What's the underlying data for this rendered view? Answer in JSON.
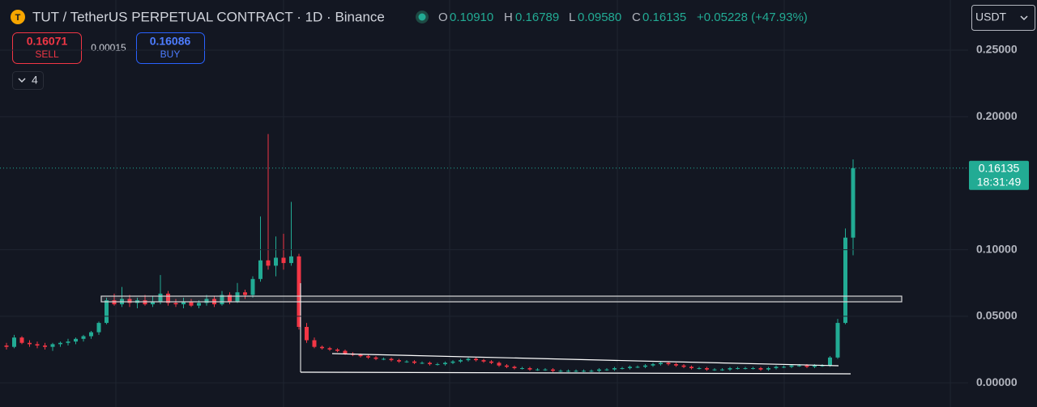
{
  "header": {
    "symbol": "TUT / TetherUS PERPETUAL CONTRACT · 1D · Binance",
    "open": {
      "label": "O",
      "value": "0.10910"
    },
    "high": {
      "label": "H",
      "value": "0.16789"
    },
    "low": {
      "label": "L",
      "value": "0.09580"
    },
    "close": {
      "label": "C",
      "value": "0.16135"
    },
    "change": "+0.05228 (+47.93%)"
  },
  "trade": {
    "sell_price": "0.16071",
    "sell_label": "SELL",
    "spread": "0.00015",
    "buy_price": "0.16086",
    "buy_label": "BUY"
  },
  "indicators_toggle": "4",
  "currency": "USDT",
  "chart_data": {
    "type": "candlestick",
    "up_color": "#22ab94",
    "down_color": "#f23645",
    "grid": true,
    "ylim": [
      -0.0182,
      0.2877
    ],
    "yticks": [
      {
        "value": 0.25,
        "label": "0.25000"
      },
      {
        "value": 0.2,
        "label": "0.20000"
      },
      {
        "value": 0.1,
        "label": "0.10000"
      },
      {
        "value": 0.05,
        "label": "0.05000"
      },
      {
        "value": 0,
        "label": "0.00000"
      }
    ],
    "last_price": {
      "value": 0.16135,
      "label": "0.16135"
    },
    "countdown": "18:31:49",
    "candles": [
      [
        0.028,
        0.03,
        0.025,
        0.027
      ],
      [
        0.027,
        0.036,
        0.026,
        0.034
      ],
      [
        0.034,
        0.035,
        0.029,
        0.03
      ],
      [
        0.03,
        0.032,
        0.027,
        0.029
      ],
      [
        0.029,
        0.031,
        0.026,
        0.028
      ],
      [
        0.028,
        0.03,
        0.025,
        0.027
      ],
      [
        0.027,
        0.03,
        0.024,
        0.029
      ],
      [
        0.029,
        0.031,
        0.027,
        0.03
      ],
      [
        0.03,
        0.033,
        0.028,
        0.031
      ],
      [
        0.031,
        0.034,
        0.029,
        0.033
      ],
      [
        0.033,
        0.036,
        0.031,
        0.035
      ],
      [
        0.035,
        0.039,
        0.033,
        0.038
      ],
      [
        0.038,
        0.046,
        0.036,
        0.045
      ],
      [
        0.045,
        0.064,
        0.044,
        0.062
      ],
      [
        0.062,
        0.067,
        0.058,
        0.059
      ],
      [
        0.059,
        0.072,
        0.057,
        0.063
      ],
      [
        0.063,
        0.066,
        0.057,
        0.06
      ],
      [
        0.06,
        0.064,
        0.056,
        0.062
      ],
      [
        0.062,
        0.066,
        0.058,
        0.059
      ],
      [
        0.059,
        0.065,
        0.057,
        0.061
      ],
      [
        0.061,
        0.081,
        0.059,
        0.067
      ],
      [
        0.067,
        0.069,
        0.058,
        0.06
      ],
      [
        0.06,
        0.063,
        0.057,
        0.059
      ],
      [
        0.059,
        0.064,
        0.056,
        0.061
      ],
      [
        0.061,
        0.063,
        0.057,
        0.058
      ],
      [
        0.058,
        0.062,
        0.056,
        0.06
      ],
      [
        0.06,
        0.066,
        0.058,
        0.063
      ],
      [
        0.063,
        0.065,
        0.057,
        0.059
      ],
      [
        0.059,
        0.069,
        0.058,
        0.066
      ],
      [
        0.066,
        0.068,
        0.059,
        0.061
      ],
      [
        0.061,
        0.075,
        0.06,
        0.068
      ],
      [
        0.068,
        0.07,
        0.063,
        0.066
      ],
      [
        0.066,
        0.08,
        0.064,
        0.078
      ],
      [
        0.078,
        0.125,
        0.076,
        0.092
      ],
      [
        0.092,
        0.187,
        0.085,
        0.088
      ],
      [
        0.088,
        0.11,
        0.08,
        0.094
      ],
      [
        0.094,
        0.112,
        0.085,
        0.09
      ],
      [
        0.09,
        0.136,
        0.088,
        0.095
      ],
      [
        0.095,
        0.097,
        0.04,
        0.042
      ],
      [
        0.042,
        0.045,
        0.03,
        0.032
      ],
      [
        0.032,
        0.034,
        0.026,
        0.027
      ],
      [
        0.027,
        0.028,
        0.025,
        0.026
      ],
      [
        0.026,
        0.027,
        0.024,
        0.025
      ],
      [
        0.025,
        0.026,
        0.023,
        0.024
      ],
      [
        0.024,
        0.025,
        0.021,
        0.022
      ],
      [
        0.022,
        0.023,
        0.02,
        0.021
      ],
      [
        0.021,
        0.022,
        0.019,
        0.02
      ],
      [
        0.02,
        0.021,
        0.018,
        0.019
      ],
      [
        0.019,
        0.02,
        0.017,
        0.018
      ],
      [
        0.018,
        0.019,
        0.017,
        0.018
      ],
      [
        0.018,
        0.019,
        0.016,
        0.017
      ],
      [
        0.017,
        0.018,
        0.015,
        0.016
      ],
      [
        0.016,
        0.017,
        0.015,
        0.016
      ],
      [
        0.016,
        0.017,
        0.014,
        0.015
      ],
      [
        0.015,
        0.016,
        0.014,
        0.015
      ],
      [
        0.015,
        0.016,
        0.013,
        0.014
      ],
      [
        0.014,
        0.015,
        0.013,
        0.014
      ],
      [
        0.014,
        0.016,
        0.013,
        0.015
      ],
      [
        0.015,
        0.017,
        0.014,
        0.016
      ],
      [
        0.016,
        0.018,
        0.015,
        0.017
      ],
      [
        0.017,
        0.019,
        0.016,
        0.018
      ],
      [
        0.018,
        0.019,
        0.016,
        0.017
      ],
      [
        0.017,
        0.018,
        0.015,
        0.016
      ],
      [
        0.016,
        0.017,
        0.014,
        0.015
      ],
      [
        0.015,
        0.016,
        0.012,
        0.013
      ],
      [
        0.013,
        0.014,
        0.011,
        0.012
      ],
      [
        0.012,
        0.013,
        0.01,
        0.011
      ],
      [
        0.011,
        0.012,
        0.01,
        0.011
      ],
      [
        0.011,
        0.012,
        0.009,
        0.01
      ],
      [
        0.01,
        0.011,
        0.009,
        0.01
      ],
      [
        0.01,
        0.011,
        0.009,
        0.01
      ],
      [
        0.01,
        0.011,
        0.008,
        0.009
      ],
      [
        0.009,
        0.01,
        0.008,
        0.009
      ],
      [
        0.009,
        0.01,
        0.008,
        0.009
      ],
      [
        0.009,
        0.01,
        0.008,
        0.009
      ],
      [
        0.009,
        0.01,
        0.008,
        0.009
      ],
      [
        0.009,
        0.01,
        0.008,
        0.009
      ],
      [
        0.009,
        0.011,
        0.008,
        0.01
      ],
      [
        0.01,
        0.011,
        0.009,
        0.01
      ],
      [
        0.01,
        0.012,
        0.009,
        0.011
      ],
      [
        0.011,
        0.012,
        0.01,
        0.011
      ],
      [
        0.011,
        0.013,
        0.01,
        0.012
      ],
      [
        0.012,
        0.013,
        0.011,
        0.012
      ],
      [
        0.012,
        0.014,
        0.011,
        0.013
      ],
      [
        0.013,
        0.015,
        0.012,
        0.014
      ],
      [
        0.014,
        0.016,
        0.013,
        0.015
      ],
      [
        0.015,
        0.016,
        0.013,
        0.014
      ],
      [
        0.014,
        0.015,
        0.012,
        0.013
      ],
      [
        0.013,
        0.014,
        0.011,
        0.012
      ],
      [
        0.012,
        0.013,
        0.01,
        0.011
      ],
      [
        0.011,
        0.012,
        0.01,
        0.011
      ],
      [
        0.011,
        0.012,
        0.009,
        0.01
      ],
      [
        0.01,
        0.011,
        0.009,
        0.01
      ],
      [
        0.01,
        0.011,
        0.009,
        0.01
      ],
      [
        0.01,
        0.012,
        0.009,
        0.011
      ],
      [
        0.011,
        0.012,
        0.01,
        0.011
      ],
      [
        0.011,
        0.012,
        0.01,
        0.011
      ],
      [
        0.011,
        0.012,
        0.01,
        0.011
      ],
      [
        0.011,
        0.012,
        0.009,
        0.01
      ],
      [
        0.01,
        0.012,
        0.009,
        0.011
      ],
      [
        0.011,
        0.013,
        0.01,
        0.012
      ],
      [
        0.012,
        0.013,
        0.011,
        0.012
      ],
      [
        0.012,
        0.014,
        0.011,
        0.013
      ],
      [
        0.013,
        0.014,
        0.012,
        0.013
      ],
      [
        0.013,
        0.014,
        0.011,
        0.012
      ],
      [
        0.012,
        0.014,
        0.011,
        0.013
      ],
      [
        0.013,
        0.014,
        0.012,
        0.013
      ],
      [
        0.013,
        0.02,
        0.012,
        0.019
      ],
      [
        0.019,
        0.048,
        0.018,
        0.045
      ],
      [
        0.045,
        0.116,
        0.044,
        0.1091
      ],
      [
        0.1091,
        0.16789,
        0.0958,
        0.16135
      ]
    ]
  }
}
